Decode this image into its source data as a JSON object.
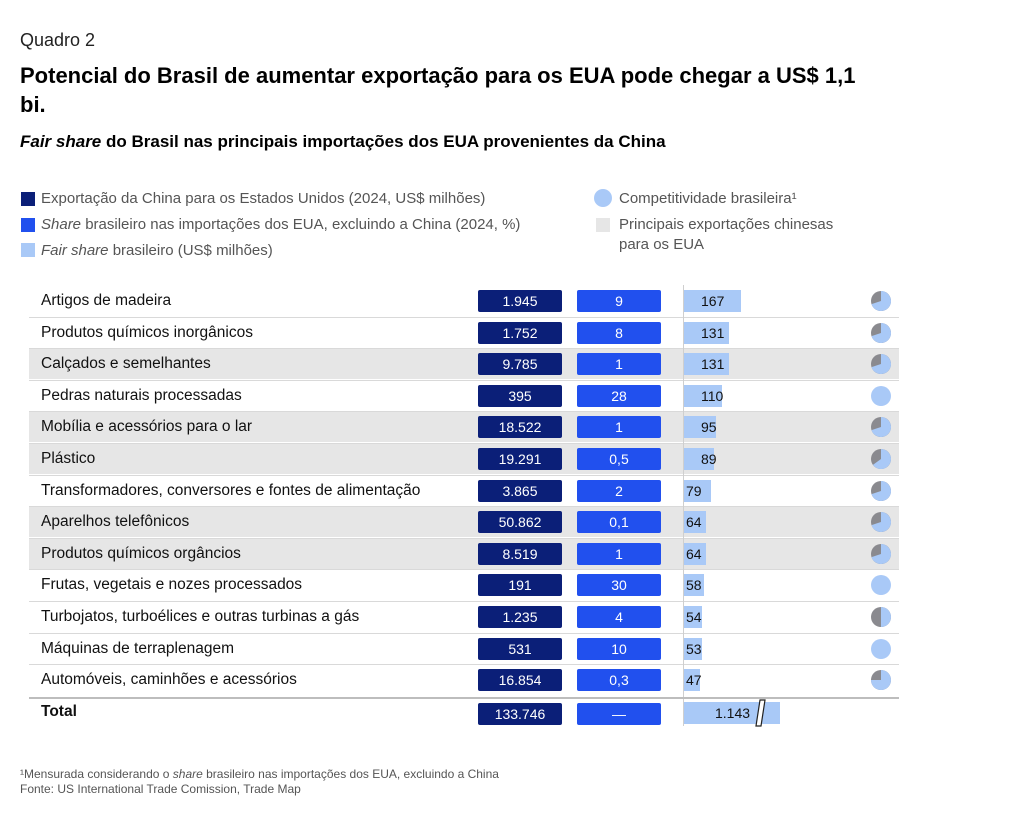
{
  "header": {
    "quadro": "Quadro 2",
    "title": "Potencial do Brasil de aumentar exportação para os EUA pode chegar a US$ 1,1 bi.",
    "subtitle_italic": "Fair share",
    "subtitle_rest": " do Brasil nas principais importações dos EUA provenientes da China"
  },
  "legend": {
    "china_exports": "Exportação da China para os Estados Unidos (2024, US$ milhões)",
    "share_italic": "Share",
    "share_rest": " brasileiro nas importações dos EUA, excluindo a China (2024, %)",
    "fair_italic": "Fair share",
    "fair_rest": " brasileiro (US$ milhões)",
    "competitiveness": "Competitividade brasileira¹",
    "principal_line1": "Principais exportações chinesas",
    "principal_line2": "para os EUA"
  },
  "colors": {
    "china": "#0b1f78",
    "share": "#2150ee",
    "fair": "#a9c9f7",
    "pie_gray": "#8a8a8f",
    "shade": "#e6e6e6"
  },
  "chart_data": {
    "type": "table",
    "columns": [
      "Exportação da China para os Estados Unidos (2024, US$ milhões)",
      "Share brasileiro nas importações dos EUA, excluindo a China (2024, %)",
      "Fair share brasileiro (US$ milhões)",
      "Competitividade brasileira"
    ],
    "rows": [
      {
        "label": "Artigos de madeira",
        "china": "1.945",
        "share": "9",
        "fair": "167",
        "fair_value": 167,
        "competitiveness": 0.7,
        "principal": false
      },
      {
        "label": "Produtos químicos inorgânicos",
        "china": "1.752",
        "share": "8",
        "fair": "131",
        "fair_value": 131,
        "competitiveness": 0.7,
        "principal": false
      },
      {
        "label": "Calçados e semelhantes",
        "china": "9.785",
        "share": "1",
        "fair": "131",
        "fair_value": 131,
        "competitiveness": 0.7,
        "principal": true
      },
      {
        "label": "Pedras naturais processadas",
        "china": "395",
        "share": "28",
        "fair": "110",
        "fair_value": 110,
        "competitiveness": 1.0,
        "principal": false
      },
      {
        "label": "Mobília e acessórios para o lar",
        "china": "18.522",
        "share": "1",
        "fair": "95",
        "fair_value": 95,
        "competitiveness": 0.7,
        "principal": true
      },
      {
        "label": "Plástico",
        "china": "19.291",
        "share": "0,5",
        "fair": "89",
        "fair_value": 89,
        "competitiveness": 0.65,
        "principal": true
      },
      {
        "label": "Transformadores, conversores e fontes de alimentação",
        "china": "3.865",
        "share": "2",
        "fair": "79",
        "fair_value": 79,
        "competitiveness": 0.7,
        "principal": false
      },
      {
        "label": "Aparelhos telefônicos",
        "china": "50.862",
        "share": "0,1",
        "fair": "64",
        "fair_value": 64,
        "competitiveness": 0.7,
        "principal": true
      },
      {
        "label": "Produtos químicos orgâncios",
        "china": "8.519",
        "share": "1",
        "fair": "64",
        "fair_value": 64,
        "competitiveness": 0.7,
        "principal": true
      },
      {
        "label": "Frutas, vegetais e nozes processados",
        "china": "191",
        "share": "30",
        "fair": "58",
        "fair_value": 58,
        "competitiveness": 1.0,
        "principal": false
      },
      {
        "label": "Turbojatos, turboélices e outras turbinas a gás",
        "china": "1.235",
        "share": "4",
        "fair": "54",
        "fair_value": 54,
        "competitiveness": 0.5,
        "principal": false
      },
      {
        "label": "Máquinas de terraplenagem",
        "china": "531",
        "share": "10",
        "fair": "53",
        "fair_value": 53,
        "competitiveness": 1.0,
        "principal": false
      },
      {
        "label": "Automóveis, caminhões e acessórios",
        "china": "16.854",
        "share": "0,3",
        "fair": "47",
        "fair_value": 47,
        "competitiveness": 0.75,
        "principal": false
      }
    ],
    "total": {
      "label": "Total",
      "china": "133.746",
      "share": "—",
      "fair": "1.143",
      "fair_value": 1143
    }
  },
  "footnote": {
    "line1_pre": "¹Mensurada considerando o ",
    "line1_italic": "share",
    "line1_post": " brasileiro nas importações dos EUA, excluindo a China",
    "line2": "Fonte: US International Trade Comission, Trade Map"
  }
}
